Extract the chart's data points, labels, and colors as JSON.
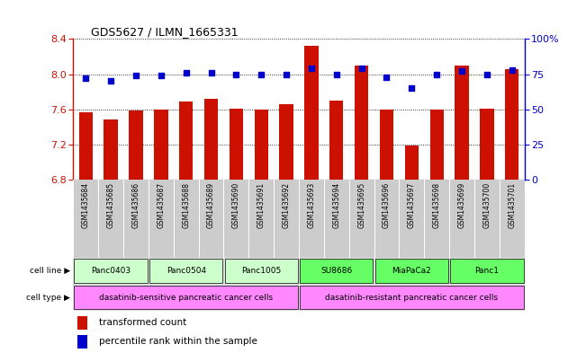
{
  "title": "GDS5627 / ILMN_1665331",
  "samples": [
    "GSM1435684",
    "GSM1435685",
    "GSM1435686",
    "GSM1435687",
    "GSM1435688",
    "GSM1435689",
    "GSM1435690",
    "GSM1435691",
    "GSM1435692",
    "GSM1435693",
    "GSM1435694",
    "GSM1435695",
    "GSM1435696",
    "GSM1435697",
    "GSM1435698",
    "GSM1435699",
    "GSM1435700",
    "GSM1435701"
  ],
  "transformed_count": [
    7.57,
    7.49,
    7.59,
    7.6,
    7.69,
    7.72,
    7.61,
    7.6,
    7.66,
    8.32,
    7.7,
    8.1,
    7.6,
    7.19,
    7.6,
    8.1,
    7.61,
    8.06
  ],
  "percentile_rank": [
    72,
    70,
    74,
    74,
    76,
    76,
    75,
    75,
    75,
    79,
    75,
    79,
    73,
    65,
    75,
    77,
    75,
    78
  ],
  "ylim_left": [
    6.8,
    8.4
  ],
  "ylim_right": [
    0,
    100
  ],
  "yticks_left": [
    6.8,
    7.2,
    7.6,
    8.0,
    8.4
  ],
  "yticks_right": [
    0,
    25,
    50,
    75,
    100
  ],
  "ytick_labels_right": [
    "0",
    "25",
    "50",
    "75",
    "100%"
  ],
  "bar_color": "#CC1100",
  "dot_color": "#0000CC",
  "cell_lines": [
    {
      "label": "Panc0403",
      "start": 0,
      "end": 3,
      "color": "#ccffcc"
    },
    {
      "label": "Panc0504",
      "start": 3,
      "end": 6,
      "color": "#ccffcc"
    },
    {
      "label": "Panc1005",
      "start": 6,
      "end": 9,
      "color": "#ccffcc"
    },
    {
      "label": "SU8686",
      "start": 9,
      "end": 12,
      "color": "#66ff66"
    },
    {
      "label": "MiaPaCa2",
      "start": 12,
      "end": 15,
      "color": "#66ff66"
    },
    {
      "label": "Panc1",
      "start": 15,
      "end": 18,
      "color": "#66ff66"
    }
  ],
  "cell_types": [
    {
      "label": "dasatinib-sensitive pancreatic cancer cells",
      "start": 0,
      "end": 9,
      "color": "#ff88ff"
    },
    {
      "label": "dasatinib-resistant pancreatic cancer cells",
      "start": 9,
      "end": 18,
      "color": "#ff88ff"
    }
  ],
  "legend_bar_label": "transformed count",
  "legend_dot_label": "percentile rank within the sample",
  "xlabel_bg": "#cccccc",
  "background_color": "#ffffff"
}
